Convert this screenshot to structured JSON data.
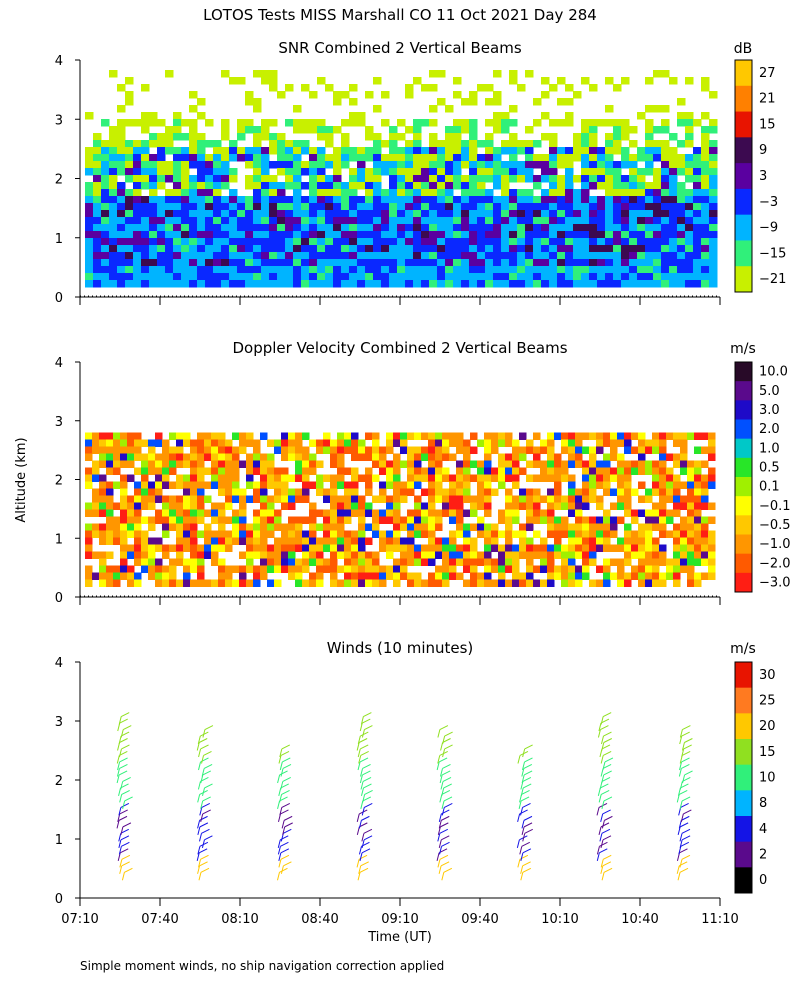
{
  "title": "LOTOS Tests MISS Marshall CO  11 Oct 2021 Day 284",
  "y_axis_label": "Altitude (km)",
  "x_axis_label": "Time (UT)",
  "footnote": "Simple moment winds, no ship navigation correction applied",
  "panels": {
    "snr": {
      "title": "SNR Combined 2 Vertical Beams",
      "unit": "dB"
    },
    "doppler": {
      "title": "Doppler Velocity Combined 2 Vertical Beams",
      "unit": "m/s"
    },
    "winds": {
      "title": "Winds (10 minutes)",
      "unit": "m/s"
    }
  },
  "chart_data": [
    {
      "type": "heatmap",
      "title": "SNR Combined 2 Vertical Beams",
      "ylabel": "Altitude (km)",
      "ylim": [
        0,
        4
      ],
      "y_ticks": [
        "0",
        "1",
        "2",
        "3",
        "4"
      ],
      "xlim": [
        "07:10",
        "11:10"
      ],
      "x_ticks": [
        "07:10",
        "07:40",
        "08:10",
        "08:40",
        "09:10",
        "09:40",
        "10:10",
        "10:40",
        "11:10"
      ],
      "colorbar": {
        "unit": "dB",
        "levels": [
          "27",
          "21",
          "15",
          "9",
          "3",
          "−3",
          "−9",
          "−15",
          "−21"
        ],
        "colors": [
          "#ffc800",
          "#ff8000",
          "#e81400",
          "#3c0a50",
          "#5a00a0",
          "#0a28ff",
          "#00b4ff",
          "#30f07a",
          "#c8f000"
        ]
      }
    },
    {
      "type": "heatmap",
      "title": "Doppler Velocity Combined 2 Vertical Beams",
      "ylabel": "Altitude (km)",
      "ylim": [
        0,
        4
      ],
      "y_ticks": [
        "0",
        "1",
        "2",
        "3",
        "4"
      ],
      "xlim": [
        "07:10",
        "11:10"
      ],
      "colorbar": {
        "unit": "m/s",
        "levels": [
          "10.0",
          "5.0",
          "3.0",
          "2.0",
          "1.0",
          "0.5",
          "0.1",
          "−0.1",
          "−0.5",
          "−1.0",
          "−2.0",
          "−3.0"
        ],
        "colors": [
          "#280a28",
          "#5a0a8c",
          "#1e0ac8",
          "#0050ff",
          "#00c8c8",
          "#28e628",
          "#a0f000",
          "#ffff00",
          "#ffc800",
          "#ff9600",
          "#ff5a00",
          "#ff1e14"
        ]
      }
    },
    {
      "type": "scatter",
      "title": "Winds (10 minutes)",
      "ylabel": "Altitude (km)",
      "xlabel": "Time (UT)",
      "ylim": [
        0,
        4
      ],
      "xlim": [
        "07:10",
        "11:10"
      ],
      "x_ticks": [
        "07:10",
        "07:40",
        "08:10",
        "08:40",
        "09:10",
        "09:40",
        "10:10",
        "10:40",
        "11:10"
      ],
      "profile_times": [
        "07:25",
        "07:55",
        "08:25",
        "08:55",
        "09:25",
        "09:55",
        "10:25",
        "10:55"
      ],
      "colorbar": {
        "unit": "m/s",
        "levels": [
          "30",
          "25",
          "20",
          "15",
          "10",
          "8",
          "4",
          "2",
          "0"
        ],
        "colors": [
          "#e81400",
          "#ff7a20",
          "#ffc800",
          "#90e020",
          "#30f07a",
          "#00b4ff",
          "#1414e6",
          "#5a0a8c",
          "#000000"
        ]
      }
    }
  ]
}
